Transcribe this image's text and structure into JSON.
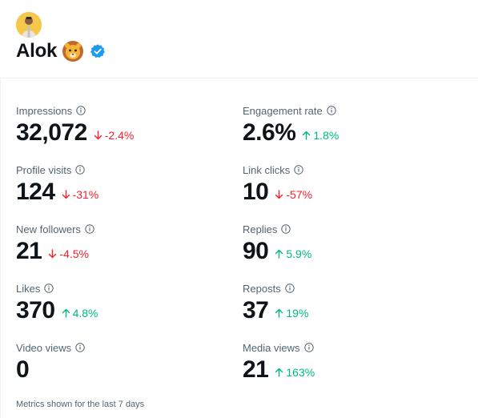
{
  "profile": {
    "name": "Alok",
    "emoji_icon": "lion-face-icon",
    "verified_icon": "verified-badge-icon",
    "verified_color": "#1d9bf0"
  },
  "metrics": [
    {
      "label": "Impressions",
      "value": "32,072",
      "change": "-2.4%",
      "direction": "down"
    },
    {
      "label": "Engagement rate",
      "value": "2.6%",
      "change": "1.8%",
      "direction": "up"
    },
    {
      "label": "Profile visits",
      "value": "124",
      "change": "-31%",
      "direction": "down"
    },
    {
      "label": "Link clicks",
      "value": "10",
      "change": "-57%",
      "direction": "down"
    },
    {
      "label": "New followers",
      "value": "21",
      "change": "-4.5%",
      "direction": "down"
    },
    {
      "label": "Replies",
      "value": "90",
      "change": "5.9%",
      "direction": "up"
    },
    {
      "label": "Likes",
      "value": "370",
      "change": "4.8%",
      "direction": "up"
    },
    {
      "label": "Reposts",
      "value": "37",
      "change": "19%",
      "direction": "up"
    },
    {
      "label": "Video views",
      "value": "0",
      "change": null,
      "direction": null
    },
    {
      "label": "Media views",
      "value": "21",
      "change": "163%",
      "direction": "up"
    }
  ],
  "footnote": "Metrics shown for the last 7 days",
  "colors": {
    "text_primary": "#0f1419",
    "text_secondary": "#536471",
    "negative": "#f4212e",
    "positive": "#00ba7c"
  }
}
